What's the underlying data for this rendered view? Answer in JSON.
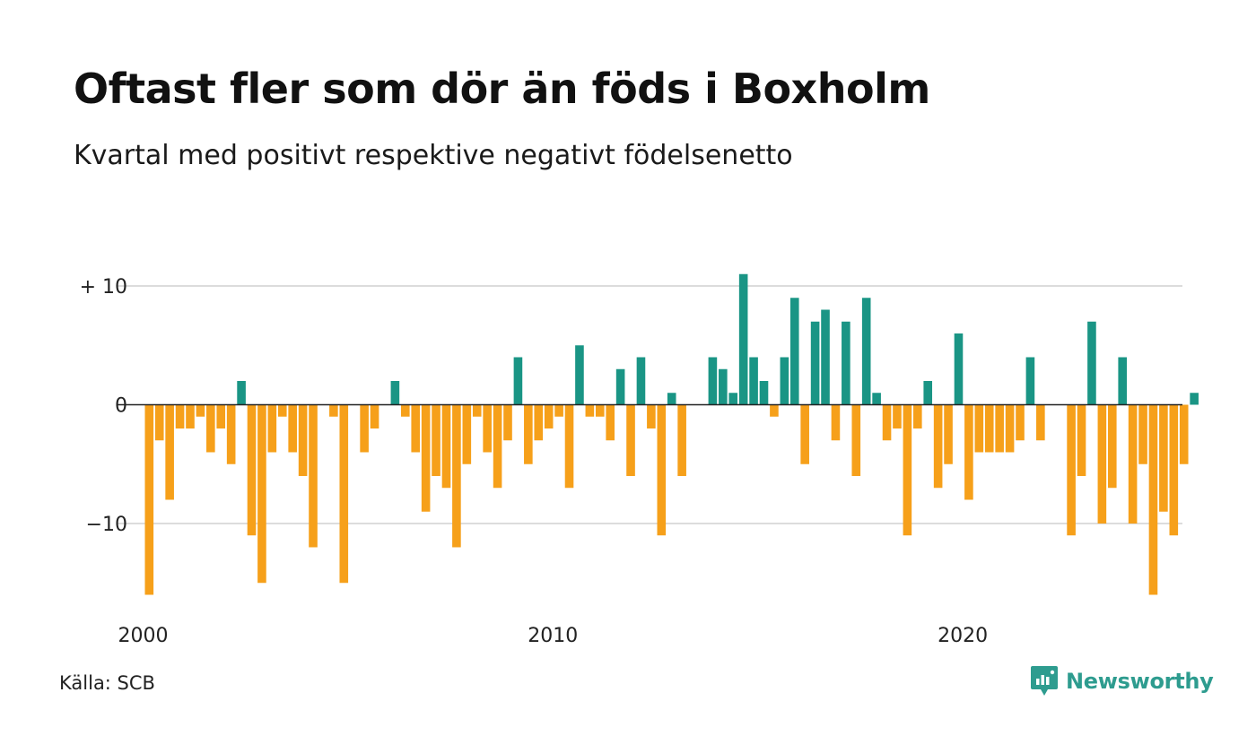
{
  "title": "Oftast fler som dör än föds i Boxholm",
  "subtitle": "Kvartal med positivt respektive negativt födelsenetto",
  "source": "Källa: SCB",
  "brand": {
    "name": "Newsworthy",
    "color": "#2e9c8f",
    "icon": "newsworthy-logo-icon"
  },
  "colors": {
    "positive": "#1a9585",
    "negative": "#f6a01a",
    "grid": "#dcdcdc",
    "zero": "#222222"
  },
  "chart_data": {
    "type": "bar",
    "xlabel": "",
    "ylabel": "",
    "ylim": [
      -16,
      11
    ],
    "x_start": 2000,
    "periods_per_year": 4,
    "x_ticks": [
      {
        "value": 2000,
        "label": "2000"
      },
      {
        "value": 2010,
        "label": "2010"
      },
      {
        "value": 2020,
        "label": "2020"
      }
    ],
    "y_ticks": [
      {
        "value": 10,
        "label": "+ 10"
      },
      {
        "value": 0,
        "label": "0"
      },
      {
        "value": -10,
        "label": "−10"
      }
    ],
    "grid": true,
    "values": [
      -16,
      -3,
      -8,
      -2,
      -2,
      -1,
      -4,
      -2,
      -5,
      2,
      -11,
      -15,
      -4,
      -1,
      -4,
      -6,
      -12,
      0,
      -1,
      -15,
      0,
      -4,
      -2,
      0,
      2,
      -1,
      -4,
      -9,
      -6,
      -7,
      -12,
      -5,
      -1,
      -4,
      -7,
      -3,
      4,
      -5,
      -3,
      -2,
      -1,
      -7,
      5,
      -1,
      -1,
      -3,
      3,
      -6,
      4,
      -2,
      -11,
      1,
      -6,
      0,
      0,
      4,
      3,
      1,
      11,
      4,
      2,
      -1,
      4,
      9,
      -5,
      7,
      8,
      -3,
      7,
      -6,
      9,
      1,
      -3,
      -2,
      -11,
      -2,
      2,
      -7,
      -5,
      6,
      -8,
      -4,
      -4,
      -4,
      -4,
      -3,
      4,
      -3,
      0,
      0,
      -11,
      -6,
      7,
      -10,
      -7,
      4,
      -10,
      -5,
      -16,
      -9,
      -11,
      -5,
      1
    ]
  }
}
